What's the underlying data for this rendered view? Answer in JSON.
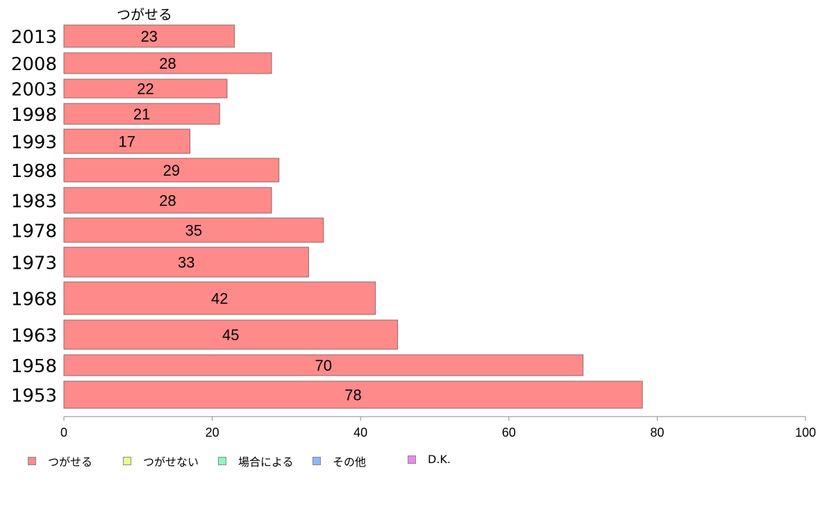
{
  "chart_data": {
    "type": "bar",
    "orientation": "horizontal",
    "series_title": "つがせる",
    "categories": [
      "2013",
      "2008",
      "2003",
      "1998",
      "1993",
      "1988",
      "1983",
      "1978",
      "1973",
      "1968",
      "1963",
      "1958",
      "1953"
    ],
    "series": [
      {
        "name": "つがせる",
        "color": "#ff8a8a",
        "values": [
          23,
          28,
          22,
          21,
          17,
          29,
          28,
          35,
          33,
          42,
          45,
          70,
          78
        ]
      }
    ],
    "xlim": [
      0,
      100
    ],
    "xticks": [
      0,
      20,
      40,
      60,
      80,
      100
    ],
    "legend": {
      "placement": "bottom-left",
      "items": [
        {
          "label": "つがせる",
          "color": "#ff8a8a"
        },
        {
          "label": "つがせない",
          "color": "#eaff8a"
        },
        {
          "label": "場合による",
          "color": "#8affc0"
        },
        {
          "label": "その他",
          "color": "#8ab8ff"
        },
        {
          "label": "D.K.",
          "color": "#ee88ee"
        }
      ]
    }
  }
}
